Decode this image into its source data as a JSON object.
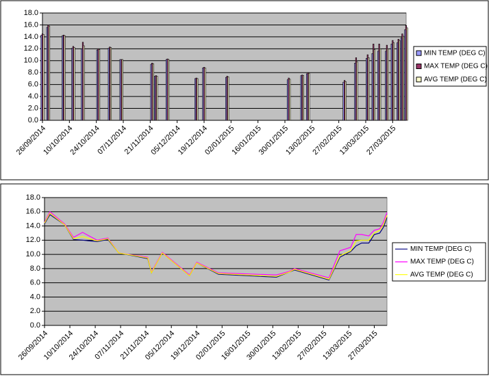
{
  "chart_data": [
    {
      "type": "bar",
      "legend": "right",
      "grid": true,
      "plot_color": "#c0c0c0",
      "xlim": [
        "2014-09-26",
        "2015-04-03"
      ],
      "xticks": [
        {
          "value": "2014-09-26",
          "label": "26/09/2014"
        },
        {
          "value": "2014-10-10",
          "label": "10/10/2014"
        },
        {
          "value": "2014-10-24",
          "label": "24/10/2014"
        },
        {
          "value": "2014-11-07",
          "label": "07/11/2014"
        },
        {
          "value": "2014-11-21",
          "label": "21/11/2014"
        },
        {
          "value": "2014-12-05",
          "label": "05/12/2014"
        },
        {
          "value": "2014-12-19",
          "label": "19/12/2014"
        },
        {
          "value": "2015-01-02",
          "label": "02/01/2015"
        },
        {
          "value": "2015-01-16",
          "label": "16/01/2015"
        },
        {
          "value": "2015-01-30",
          "label": "30/01/2015"
        },
        {
          "value": "2015-02-13",
          "label": "13/02/2015"
        },
        {
          "value": "2015-02-27",
          "label": "27/02/2015"
        },
        {
          "value": "2015-03-13",
          "label": "13/03/2015"
        },
        {
          "value": "2015-03-27",
          "label": "27/03/2015"
        }
      ],
      "ylim": [
        0,
        18
      ],
      "yticks": [
        {
          "value": 0,
          "label": "0.0"
        },
        {
          "value": 2,
          "label": "2.0"
        },
        {
          "value": 4,
          "label": "4.0"
        },
        {
          "value": 6,
          "label": "6.0"
        },
        {
          "value": 8,
          "label": "8.0"
        },
        {
          "value": 10,
          "label": "10.0"
        },
        {
          "value": 12,
          "label": "12.0"
        },
        {
          "value": 14,
          "label": "14.0"
        },
        {
          "value": 16,
          "label": "16.0"
        },
        {
          "value": 18,
          "label": "18.0"
        }
      ],
      "x": [
        "2014-09-26",
        "2014-09-29",
        "2014-10-07",
        "2014-10-12",
        "2014-10-17",
        "2014-10-25",
        "2014-10-31",
        "2014-11-06",
        "2014-11-22",
        "2014-11-24",
        "2014-11-30",
        "2014-12-15",
        "2014-12-19",
        "2014-12-31",
        "2015-02-01",
        "2015-02-08",
        "2015-02-11",
        "2015-03-02",
        "2015-03-08",
        "2015-03-14",
        "2015-03-17",
        "2015-03-20",
        "2015-03-24",
        "2015-03-27",
        "2015-03-30",
        "2015-04-01",
        "2015-04-03"
      ],
      "series": [
        {
          "name": "MIN TEMP (DEG C)",
          "color": "#9999ff",
          "values": [
            14.3,
            15.6,
            14.2,
            12.1,
            12.0,
            11.8,
            12.1,
            10.2,
            9.4,
            7.4,
            10.2,
            7.0,
            8.8,
            7.2,
            6.8,
            7.5,
            7.8,
            6.4,
            9.6,
            10.4,
            11.2,
            11.6,
            11.6,
            12.8,
            13.0,
            13.8,
            15.2
          ]
        },
        {
          "name": "MAX TEMP (DEG C)",
          "color": "#993366",
          "values": [
            14.5,
            16.0,
            14.3,
            12.4,
            13.1,
            12.0,
            12.3,
            10.2,
            9.6,
            7.5,
            10.3,
            7.1,
            8.9,
            7.4,
            7.1,
            7.6,
            8.0,
            6.7,
            10.5,
            11.0,
            12.8,
            12.8,
            12.6,
            13.4,
            13.6,
            14.5,
            15.9
          ]
        },
        {
          "name": "AVG TEMP (DEG C)",
          "color": "#ffffcc",
          "values": [
            14.4,
            15.8,
            14.2,
            12.2,
            12.5,
            11.9,
            12.2,
            10.2,
            9.5,
            7.4,
            10.2,
            7.0,
            8.8,
            7.3,
            6.9,
            7.5,
            7.9,
            6.5,
            9.8,
            10.5,
            11.9,
            12.0,
            12.0,
            13.0,
            13.4,
            14.1,
            15.5
          ]
        }
      ]
    },
    {
      "type": "line",
      "legend": "right",
      "grid": true,
      "plot_color": "#c0c0c0",
      "xlim": [
        "2014-09-26",
        "2015-04-03"
      ],
      "xticks": [
        {
          "value": "2014-09-26",
          "label": "26/09/2014"
        },
        {
          "value": "2014-10-10",
          "label": "10/10/2014"
        },
        {
          "value": "2014-10-24",
          "label": "24/10/2014"
        },
        {
          "value": "2014-11-07",
          "label": "07/11/2014"
        },
        {
          "value": "2014-11-21",
          "label": "21/11/2014"
        },
        {
          "value": "2014-12-05",
          "label": "05/12/2014"
        },
        {
          "value": "2014-12-19",
          "label": "19/12/2014"
        },
        {
          "value": "2015-01-02",
          "label": "02/01/2015"
        },
        {
          "value": "2015-01-16",
          "label": "16/01/2015"
        },
        {
          "value": "2015-01-30",
          "label": "30/01/2015"
        },
        {
          "value": "2015-02-13",
          "label": "13/02/2015"
        },
        {
          "value": "2015-02-27",
          "label": "27/02/2015"
        },
        {
          "value": "2015-03-13",
          "label": "13/03/2015"
        },
        {
          "value": "2015-03-27",
          "label": "27/03/2015"
        }
      ],
      "ylim": [
        0,
        18
      ],
      "yticks": [
        {
          "value": 0,
          "label": "0.0"
        },
        {
          "value": 2,
          "label": "2.0"
        },
        {
          "value": 4,
          "label": "4.0"
        },
        {
          "value": 6,
          "label": "6.0"
        },
        {
          "value": 8,
          "label": "8.0"
        },
        {
          "value": 10,
          "label": "10.0"
        },
        {
          "value": 12,
          "label": "12.0"
        },
        {
          "value": 14,
          "label": "14.0"
        },
        {
          "value": 16,
          "label": "16.0"
        },
        {
          "value": 18,
          "label": "18.0"
        }
      ],
      "x": [
        "2014-09-26",
        "2014-09-29",
        "2014-10-07",
        "2014-10-12",
        "2014-10-17",
        "2014-10-25",
        "2014-10-31",
        "2014-11-06",
        "2014-11-22",
        "2014-11-24",
        "2014-11-30",
        "2014-12-15",
        "2014-12-19",
        "2014-12-31",
        "2015-02-01",
        "2015-02-08",
        "2015-02-11",
        "2015-03-02",
        "2015-03-08",
        "2015-03-14",
        "2015-03-17",
        "2015-03-20",
        "2015-03-24",
        "2015-03-27",
        "2015-03-30",
        "2015-04-01",
        "2015-04-03"
      ],
      "series": [
        {
          "name": "MIN TEMP (DEG C)",
          "color": "#000080",
          "values": [
            14.3,
            15.6,
            14.2,
            12.1,
            12.0,
            11.8,
            12.1,
            10.2,
            9.4,
            7.4,
            10.2,
            7.0,
            8.8,
            7.2,
            6.8,
            7.5,
            7.8,
            6.4,
            9.6,
            10.4,
            11.2,
            11.6,
            11.6,
            12.8,
            13.0,
            13.8,
            15.2
          ]
        },
        {
          "name": "MAX TEMP (DEG C)",
          "color": "#ff00ff",
          "values": [
            14.5,
            16.0,
            14.3,
            12.4,
            13.1,
            12.0,
            12.3,
            10.2,
            9.6,
            7.5,
            10.3,
            7.1,
            8.9,
            7.4,
            7.1,
            7.6,
            8.0,
            6.7,
            10.5,
            11.0,
            12.8,
            12.8,
            12.6,
            13.4,
            13.6,
            14.5,
            15.9
          ]
        },
        {
          "name": "AVG TEMP (DEG C)",
          "color": "#ffff00",
          "values": [
            14.4,
            15.8,
            14.2,
            12.2,
            12.5,
            11.9,
            12.2,
            10.2,
            9.5,
            7.4,
            10.2,
            7.0,
            8.8,
            7.3,
            6.9,
            7.5,
            7.9,
            6.5,
            9.8,
            10.5,
            11.9,
            12.0,
            12.0,
            13.0,
            13.4,
            14.1,
            15.5
          ]
        }
      ]
    }
  ]
}
